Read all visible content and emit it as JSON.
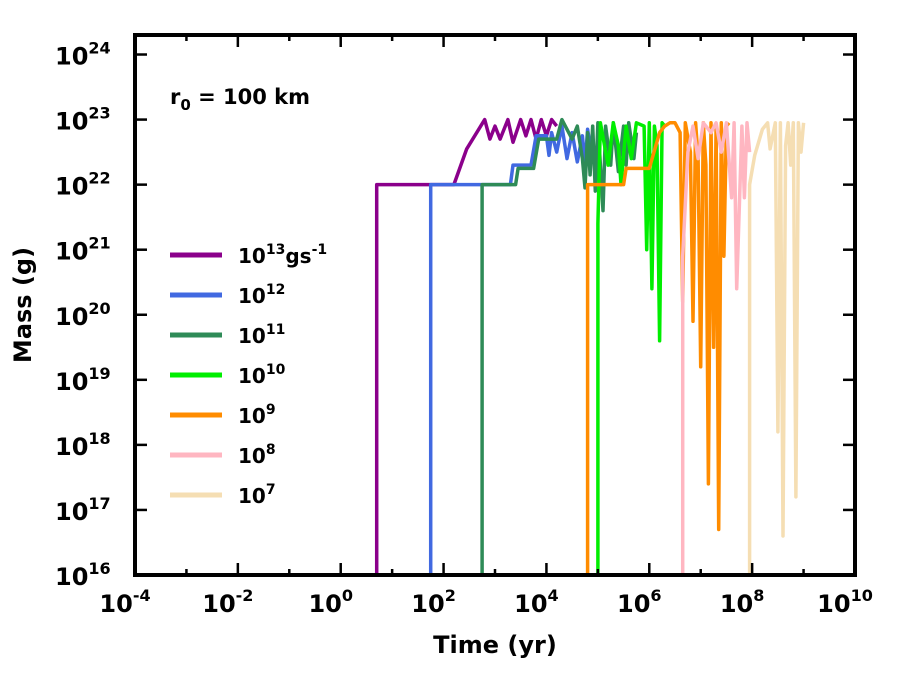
{
  "chart_data": {
    "type": "line",
    "title": "",
    "xlabel": "Time (yr)",
    "ylabel": "Mass (g)",
    "xscale": "log",
    "yscale": "log",
    "xlim_exp": [
      -4,
      10
    ],
    "ylim_exp": [
      16,
      24.3
    ],
    "x_ticks": [
      {
        "base": "10",
        "exp": "-4",
        "value_exp": -4
      },
      {
        "base": "10",
        "exp": "-2",
        "value_exp": -2
      },
      {
        "base": "10",
        "exp": "0",
        "value_exp": 0
      },
      {
        "base": "10",
        "exp": "2",
        "value_exp": 2
      },
      {
        "base": "10",
        "exp": "4",
        "value_exp": 4
      },
      {
        "base": "10",
        "exp": "6",
        "value_exp": 6
      },
      {
        "base": "10",
        "exp": "8",
        "value_exp": 8
      },
      {
        "base": "10",
        "exp": "10",
        "value_exp": 10
      }
    ],
    "y_ticks": [
      {
        "base": "10",
        "exp": "16",
        "value_exp": 16
      },
      {
        "base": "10",
        "exp": "17",
        "value_exp": 17
      },
      {
        "base": "10",
        "exp": "18",
        "value_exp": 18
      },
      {
        "base": "10",
        "exp": "19",
        "value_exp": 19
      },
      {
        "base": "10",
        "exp": "20",
        "value_exp": 20
      },
      {
        "base": "10",
        "exp": "21",
        "value_exp": 21
      },
      {
        "base": "10",
        "exp": "22",
        "value_exp": 22
      },
      {
        "base": "10",
        "exp": "23",
        "value_exp": 23
      },
      {
        "base": "10",
        "exp": "24",
        "value_exp": 24
      }
    ],
    "annotation": {
      "text": "r",
      "sub": "0",
      "rest": " = 100 km"
    },
    "legend_position": "center-left",
    "series": [
      {
        "name_base": "10",
        "name_exp": "13",
        "name_suffix": "gs",
        "name_suffix_exp": "-1",
        "color": "#8b008b",
        "points": [
          [
            0.7,
            16
          ],
          [
            0.7,
            22
          ],
          [
            2.2,
            22
          ],
          [
            2.45,
            22.55
          ],
          [
            2.8,
            23.0
          ],
          [
            2.9,
            22.7
          ],
          [
            3.0,
            22.9
          ],
          [
            3.1,
            22.7
          ],
          [
            3.25,
            23.0
          ],
          [
            3.35,
            22.65
          ],
          [
            3.5,
            23.0
          ],
          [
            3.6,
            22.75
          ],
          [
            3.7,
            23.0
          ],
          [
            3.8,
            22.7
          ],
          [
            3.9,
            23.0
          ],
          [
            4.0,
            22.75
          ],
          [
            4.1,
            23.0
          ],
          [
            4.2,
            22.9
          ]
        ]
      },
      {
        "name_base": "10",
        "name_exp": "12",
        "name_suffix": "",
        "name_suffix_exp": "",
        "color": "#4169e1",
        "points": [
          [
            1.75,
            16
          ],
          [
            1.75,
            22
          ],
          [
            3.3,
            22
          ],
          [
            3.35,
            22.3
          ],
          [
            3.7,
            22.3
          ],
          [
            3.8,
            22.75
          ],
          [
            4.0,
            22.75
          ],
          [
            4.05,
            22.45
          ],
          [
            4.1,
            22.8
          ],
          [
            4.2,
            22.5
          ],
          [
            4.3,
            22.9
          ],
          [
            4.4,
            22.4
          ],
          [
            4.5,
            22.8
          ],
          [
            4.6,
            22.35
          ],
          [
            4.7,
            22.75
          ],
          [
            4.75,
            22.3
          ],
          [
            4.8,
            22.85
          ],
          [
            4.85,
            22.6
          ]
        ]
      },
      {
        "name_base": "10",
        "name_exp": "11",
        "name_suffix": "",
        "name_suffix_exp": "",
        "color": "#2e8b57",
        "points": [
          [
            2.75,
            16
          ],
          [
            2.75,
            22
          ],
          [
            3.4,
            22
          ],
          [
            3.45,
            22.25
          ],
          [
            3.75,
            22.25
          ],
          [
            3.85,
            22.7
          ],
          [
            4.2,
            22.7
          ],
          [
            4.3,
            23.0
          ],
          [
            4.5,
            22.7
          ],
          [
            4.6,
            22.9
          ],
          [
            4.7,
            22.4
          ],
          [
            4.75,
            21.95
          ],
          [
            4.8,
            22.8
          ],
          [
            4.85,
            22.15
          ],
          [
            4.9,
            22.9
          ],
          [
            4.95,
            21.9
          ],
          [
            5.0,
            22.95
          ],
          [
            5.05,
            22.3
          ],
          [
            5.1,
            21.6
          ],
          [
            5.15,
            22.9
          ],
          [
            5.25,
            22.3
          ],
          [
            5.3,
            22.95
          ],
          [
            5.4,
            22.2
          ],
          [
            5.5,
            22.9
          ],
          [
            5.55,
            22.3
          ],
          [
            5.6,
            22.95
          ],
          [
            5.7,
            22.4
          ],
          [
            5.75,
            22.8
          ]
        ]
      },
      {
        "name_base": "10",
        "name_exp": "10",
        "name_suffix": "",
        "name_suffix_exp": "",
        "color": "#00ee00",
        "points": [
          [
            5.0,
            16
          ],
          [
            5.0,
            21.4
          ],
          [
            5.05,
            22.95
          ],
          [
            5.2,
            22.3
          ],
          [
            5.3,
            22.95
          ],
          [
            5.4,
            22.6
          ],
          [
            5.45,
            22.0
          ],
          [
            5.55,
            22.9
          ],
          [
            5.65,
            22.4
          ],
          [
            5.75,
            22.95
          ],
          [
            5.9,
            22.9
          ],
          [
            5.95,
            21.0
          ],
          [
            6.0,
            22.95
          ],
          [
            6.05,
            20.4
          ],
          [
            6.1,
            22.9
          ],
          [
            6.15,
            22.6
          ],
          [
            6.2,
            19.6
          ],
          [
            6.25,
            22.95
          ],
          [
            6.3,
            22.9
          ]
        ]
      },
      {
        "name_base": "10",
        "name_exp": "9",
        "name_suffix": "",
        "name_suffix_exp": "",
        "color": "#ff8c00",
        "points": [
          [
            4.8,
            16
          ],
          [
            4.8,
            22
          ],
          [
            5.5,
            22
          ],
          [
            5.55,
            22.25
          ],
          [
            6.0,
            22.25
          ],
          [
            6.2,
            22.8
          ],
          [
            6.3,
            22.9
          ],
          [
            6.4,
            22.95
          ],
          [
            6.5,
            22.95
          ],
          [
            6.6,
            22.8
          ],
          [
            6.65,
            20.2
          ],
          [
            6.7,
            22.95
          ],
          [
            6.8,
            22.5
          ],
          [
            6.85,
            19.9
          ],
          [
            6.9,
            22.95
          ],
          [
            6.95,
            22.4
          ],
          [
            7.0,
            19.2
          ],
          [
            7.05,
            22.95
          ],
          [
            7.1,
            22.3
          ],
          [
            7.15,
            17.4
          ],
          [
            7.2,
            22.95
          ],
          [
            7.25,
            19.5
          ],
          [
            7.3,
            22.9
          ],
          [
            7.35,
            16.7
          ],
          [
            7.4,
            22.95
          ],
          [
            7.45,
            20.9
          ],
          [
            7.5,
            22.9
          ],
          [
            7.55,
            22.95
          ]
        ]
      },
      {
        "name_base": "10",
        "name_exp": "8",
        "name_suffix": "",
        "name_suffix_exp": "",
        "color": "#ffb6c1",
        "points": [
          [
            6.65,
            16
          ],
          [
            6.65,
            20.9
          ],
          [
            6.75,
            22.5
          ],
          [
            6.85,
            22.9
          ],
          [
            6.95,
            22.4
          ],
          [
            7.05,
            22.95
          ],
          [
            7.2,
            22.8
          ],
          [
            7.3,
            22.95
          ],
          [
            7.4,
            22.5
          ],
          [
            7.5,
            22.95
          ],
          [
            7.6,
            21.8
          ],
          [
            7.65,
            22.95
          ],
          [
            7.7,
            20.4
          ],
          [
            7.8,
            22.9
          ],
          [
            7.85,
            21.8
          ],
          [
            7.9,
            22.95
          ],
          [
            7.95,
            22.5
          ]
        ]
      },
      {
        "name_base": "10",
        "name_exp": "7",
        "name_suffix": "",
        "name_suffix_exp": "",
        "color": "#f5deb3",
        "points": [
          [
            7.95,
            16
          ],
          [
            7.95,
            22.0
          ],
          [
            8.05,
            22.45
          ],
          [
            8.2,
            22.85
          ],
          [
            8.3,
            22.95
          ],
          [
            8.35,
            22.55
          ],
          [
            8.45,
            22.95
          ],
          [
            8.5,
            18.2
          ],
          [
            8.55,
            22.95
          ],
          [
            8.6,
            16.6
          ],
          [
            8.65,
            22.6
          ],
          [
            8.7,
            22.95
          ],
          [
            8.75,
            22.3
          ],
          [
            8.8,
            22.95
          ],
          [
            8.85,
            17.2
          ],
          [
            8.9,
            22.95
          ],
          [
            8.95,
            22.5
          ],
          [
            9.0,
            22.95
          ]
        ]
      }
    ]
  }
}
